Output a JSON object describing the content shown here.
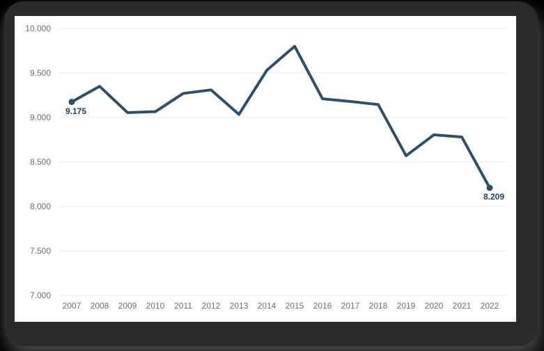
{
  "page": {
    "background_color": "#000000",
    "frame_color": "#2b2b2b",
    "card_color": "#ffffff"
  },
  "chart_data": {
    "type": "line",
    "title": "",
    "xlabel": "",
    "ylabel": "",
    "categories": [
      "2007",
      "2008",
      "2009",
      "2010",
      "2011",
      "2012",
      "2013",
      "2014",
      "2015",
      "2016",
      "2017",
      "2018",
      "2019",
      "2020",
      "2021",
      "2022"
    ],
    "values": [
      9175,
      9350,
      9055,
      9065,
      9270,
      9310,
      9035,
      9530,
      9800,
      9210,
      9180,
      9145,
      8570,
      8805,
      8780,
      8209
    ],
    "ylim": [
      7000,
      10000
    ],
    "ytick_step": 500,
    "yticks": [
      "10.000",
      "9.500",
      "9.000",
      "8.500",
      "8.000",
      "7.500",
      "7.000"
    ],
    "grid": true,
    "legend": false,
    "line_color": "#2d5068",
    "marker_color": "#2d5068",
    "grid_color": "#e7e7e7",
    "axis_text_color": "#6d6d6d",
    "point_label_color": "#1f3c55",
    "point_labels": {
      "first": "9.175",
      "last": "8.209"
    }
  }
}
